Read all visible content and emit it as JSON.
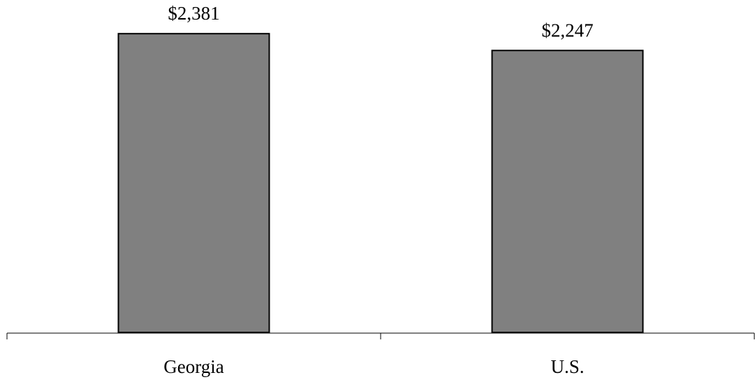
{
  "chart_data": {
    "type": "bar",
    "categories": [
      "Georgia",
      "U.S."
    ],
    "values": [
      2381,
      2247
    ],
    "data_labels": [
      "$2,381",
      "$2,247"
    ],
    "title": "",
    "xlabel": "",
    "ylabel": "",
    "ylim": [
      0,
      2460
    ],
    "grid": false,
    "legend": "none",
    "bar_color": "#808080",
    "bar_edge_color": "#000000"
  }
}
